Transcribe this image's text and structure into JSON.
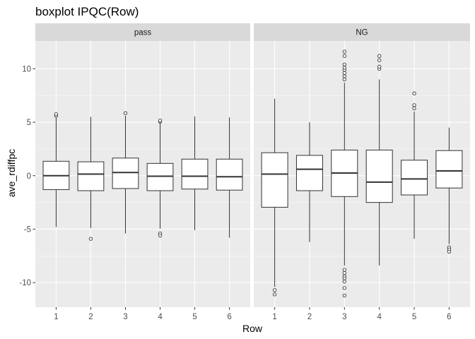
{
  "chart_data": {
    "type": "boxplot",
    "title": "boxplot IPQC(Row)",
    "xlabel": "Row",
    "ylabel": "ave_rdiffpc",
    "ylim": [
      -12.3,
      12.6
    ],
    "yticks": [
      -10,
      -5,
      0,
      5,
      10
    ],
    "ytick_labels": [
      "-10",
      "-5",
      "0",
      "5",
      "10"
    ],
    "categories": [
      "1",
      "2",
      "3",
      "4",
      "5",
      "6"
    ],
    "grid": true,
    "colors": {
      "panel_bg": "#ebebeb",
      "strip_bg": "#d9d9d9",
      "grid_major": "#ffffff",
      "box_fill": "#ffffff",
      "box_line": "#333333"
    },
    "facets": [
      {
        "label": "pass",
        "boxes": [
          {
            "x": "1",
            "lower": -4.8,
            "q1": -1.3,
            "median": 0.0,
            "q3": 1.35,
            "upper": 5.4,
            "outliers": [
              5.6,
              5.75
            ]
          },
          {
            "x": "2",
            "lower": -4.9,
            "q1": -1.4,
            "median": 0.15,
            "q3": 1.3,
            "upper": 5.5,
            "outliers": [
              -5.9
            ]
          },
          {
            "x": "3",
            "lower": -5.4,
            "q1": -1.2,
            "median": 0.3,
            "q3": 1.65,
            "upper": 5.6,
            "outliers": [
              5.85
            ]
          },
          {
            "x": "4",
            "lower": -4.95,
            "q1": -1.4,
            "median": -0.05,
            "q3": 1.15,
            "upper": 4.95,
            "outliers": [
              5.05,
              5.15,
              -5.4,
              -5.6
            ]
          },
          {
            "x": "5",
            "lower": -5.1,
            "q1": -1.25,
            "median": -0.05,
            "q3": 1.55,
            "upper": 5.55,
            "outliers": []
          },
          {
            "x": "6",
            "lower": -5.8,
            "q1": -1.35,
            "median": -0.1,
            "q3": 1.55,
            "upper": 5.45,
            "outliers": []
          }
        ]
      },
      {
        "label": "NG",
        "boxes": [
          {
            "x": "1",
            "lower": -10.4,
            "q1": -2.95,
            "median": 0.15,
            "q3": 2.15,
            "upper": 7.2,
            "outliers": [
              -10.7,
              -11.1
            ]
          },
          {
            "x": "2",
            "lower": -6.2,
            "q1": -1.4,
            "median": 0.6,
            "q3": 1.9,
            "upper": 5.0,
            "outliers": []
          },
          {
            "x": "3",
            "lower": -8.4,
            "q1": -1.95,
            "median": 0.25,
            "q3": 2.4,
            "upper": 8.7,
            "outliers": [
              9.0,
              9.3,
              9.6,
              9.9,
              10.1,
              10.4,
              11.2,
              11.6,
              -8.8,
              -9.1,
              -9.4,
              -9.6,
              -9.9,
              -10.5,
              -11.2
            ]
          },
          {
            "x": "4",
            "lower": -8.4,
            "q1": -2.5,
            "median": -0.6,
            "q3": 2.4,
            "upper": 9.0,
            "outliers": [
              10.0,
              10.2,
              10.8,
              11.2
            ]
          },
          {
            "x": "5",
            "lower": -5.9,
            "q1": -1.8,
            "median": -0.3,
            "q3": 1.45,
            "upper": 6.0,
            "outliers": [
              6.3,
              6.6,
              7.7
            ]
          },
          {
            "x": "6",
            "lower": -6.4,
            "q1": -1.15,
            "median": 0.45,
            "q3": 2.35,
            "upper": 4.5,
            "outliers": [
              -6.7,
              -6.9,
              -7.1
            ]
          }
        ]
      }
    ]
  }
}
